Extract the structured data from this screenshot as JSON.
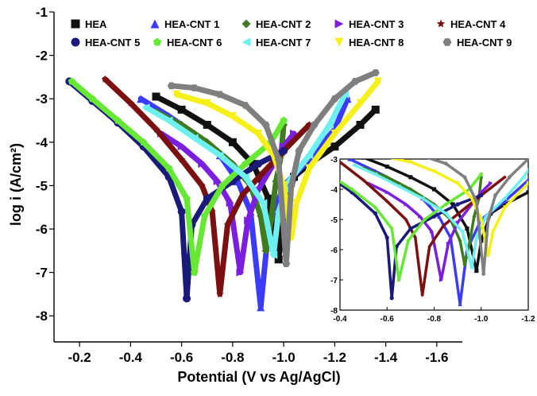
{
  "chart_data": {
    "type": "line",
    "title": "",
    "xlabel": "Potential (V vs Ag/AgCl)",
    "ylabel": "log i (A/cm²)",
    "xlim": [
      -0.1,
      -1.7
    ],
    "ylim": [
      -8.6,
      -1.0
    ],
    "x_ticks": [
      "-0.2",
      "-0.4",
      "-0.6",
      "-0.8",
      "-1.0",
      "-1.2",
      "-1.4",
      "-1.6"
    ],
    "y_ticks": [
      "-1",
      "-2",
      "-3",
      "-4",
      "-5",
      "-6",
      "-7",
      "-8"
    ],
    "legend_position": "top",
    "series": [
      {
        "name": "HEA",
        "color": "#111111",
        "marker": "square",
        "x": [
          -0.5,
          -0.6,
          -0.7,
          -0.8,
          -0.88,
          -0.94,
          -0.98,
          -1.0,
          -1.04,
          -1.1,
          -1.2,
          -1.3,
          -1.36
        ],
        "y": [
          -2.95,
          -3.25,
          -3.6,
          -4.0,
          -4.5,
          -5.3,
          -6.7,
          -5.7,
          -4.8,
          -4.5,
          -4.1,
          -3.6,
          -3.25
        ]
      },
      {
        "name": "HEA-CNT 1",
        "color": "#3b3bff",
        "marker": "triangle-up",
        "x": [
          -0.44,
          -0.55,
          -0.65,
          -0.75,
          -0.82,
          -0.87,
          -0.91,
          -0.94,
          -1.0,
          -1.1,
          -1.2,
          -1.25
        ],
        "y": [
          -3.0,
          -3.4,
          -3.8,
          -4.3,
          -4.9,
          -5.6,
          -7.8,
          -6.0,
          -5.0,
          -4.4,
          -3.7,
          -3.0
        ]
      },
      {
        "name": "HEA-CNT 2",
        "color": "#3f7a1e",
        "marker": "diamond",
        "x": [
          -0.5,
          -0.6,
          -0.7,
          -0.8,
          -0.87,
          -0.91,
          -0.93,
          -0.95,
          -0.97,
          -0.99,
          -1.0
        ],
        "y": [
          -3.3,
          -3.6,
          -4.0,
          -4.5,
          -5.0,
          -5.7,
          -6.5,
          -5.8,
          -4.9,
          -4.3,
          -3.6
        ]
      },
      {
        "name": "HEA-CNT 3",
        "color": "#7a1fe0",
        "marker": "triangle-right",
        "x": [
          -0.52,
          -0.6,
          -0.68,
          -0.74,
          -0.79,
          -0.83,
          -0.86,
          -0.9,
          -0.95,
          -1.0,
          -1.04
        ],
        "y": [
          -3.8,
          -4.1,
          -4.5,
          -4.9,
          -5.4,
          -7.0,
          -5.8,
          -5.1,
          -4.6,
          -4.1,
          -3.8
        ]
      },
      {
        "name": "HEA-CNT 4",
        "color": "#7a1010",
        "marker": "star",
        "x": [
          -0.3,
          -0.4,
          -0.5,
          -0.6,
          -0.68,
          -0.72,
          -0.75,
          -0.78,
          -0.84,
          -0.92,
          -1.0,
          -1.1
        ],
        "y": [
          -2.55,
          -3.1,
          -3.7,
          -4.4,
          -5.0,
          -5.6,
          -7.5,
          -5.9,
          -5.2,
          -4.7,
          -4.2,
          -3.6
        ]
      },
      {
        "name": "HEA-CNT 5",
        "color": "#1a1a7a",
        "marker": "circle-half",
        "x": [
          -0.16,
          -0.25,
          -0.35,
          -0.45,
          -0.55,
          -0.6,
          -0.62,
          -0.64,
          -0.7,
          -0.8,
          -0.9,
          -1.0
        ],
        "y": [
          -2.6,
          -3.05,
          -3.55,
          -4.1,
          -4.8,
          -5.6,
          -7.6,
          -5.9,
          -5.3,
          -4.9,
          -4.5,
          -4.2
        ]
      },
      {
        "name": "HEA-CNT 6",
        "color": "#66e834",
        "marker": "pentagon",
        "x": [
          -0.17,
          -0.25,
          -0.35,
          -0.45,
          -0.55,
          -0.62,
          -0.65,
          -0.69,
          -0.76,
          -0.85,
          -0.95,
          -1.0
        ],
        "y": [
          -2.6,
          -3.0,
          -3.5,
          -4.0,
          -4.6,
          -5.3,
          -7.0,
          -5.7,
          -5.0,
          -4.5,
          -4.0,
          -3.5
        ]
      },
      {
        "name": "HEA-CNT 7",
        "color": "#6ff0f0",
        "marker": "triangle-left",
        "x": [
          -0.46,
          -0.55,
          -0.65,
          -0.75,
          -0.85,
          -0.92,
          -0.96,
          -0.98,
          -1.02,
          -1.1,
          -1.18,
          -1.24
        ],
        "y": [
          -3.2,
          -3.5,
          -3.9,
          -4.3,
          -4.8,
          -5.4,
          -6.6,
          -5.6,
          -4.9,
          -4.3,
          -3.6,
          -2.9
        ]
      },
      {
        "name": "HEA-CNT 8",
        "color": "#f5ef1a",
        "marker": "triangle-down",
        "x": [
          -0.58,
          -0.7,
          -0.8,
          -0.9,
          -0.96,
          -1.0,
          -1.03,
          -1.05,
          -1.1,
          -1.2,
          -1.3,
          -1.37
        ],
        "y": [
          -2.9,
          -3.1,
          -3.4,
          -3.8,
          -4.3,
          -5.0,
          -6.2,
          -5.4,
          -4.6,
          -3.8,
          -3.1,
          -2.6
        ]
      },
      {
        "name": "HEA-CNT 9",
        "color": "#7f7f7f",
        "marker": "hexagon",
        "x": [
          -0.56,
          -0.65,
          -0.75,
          -0.85,
          -0.93,
          -0.98,
          -1.01,
          -1.03,
          -1.06,
          -1.12,
          -1.2,
          -1.28,
          -1.36
        ],
        "y": [
          -2.7,
          -2.75,
          -2.9,
          -3.15,
          -3.6,
          -4.4,
          -6.8,
          -5.0,
          -4.2,
          -3.6,
          -3.0,
          -2.6,
          -2.4
        ]
      }
    ],
    "inset": {
      "xlim": [
        -0.4,
        -1.2
      ],
      "ylim": [
        -8.0,
        -3.0
      ],
      "x_ticks": [
        "-0.4",
        "-0.6",
        "-0.8",
        "-1.0",
        "-1.2"
      ],
      "y_ticks": [
        "-3",
        "-4",
        "-5",
        "-6",
        "-7",
        "-8"
      ]
    }
  }
}
